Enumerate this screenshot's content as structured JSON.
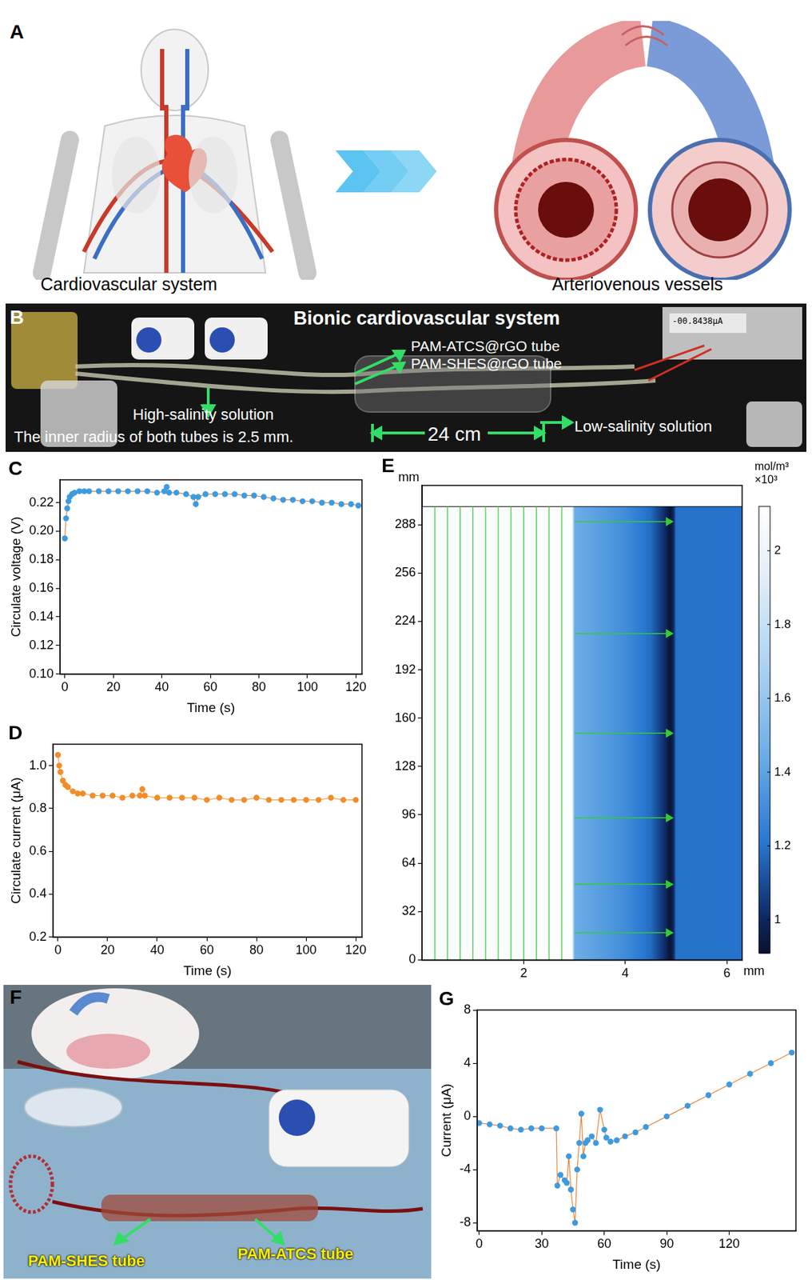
{
  "illustrations": {
    "A": {
      "letter": "A",
      "left_label": "Cardiovascular system",
      "right_label": "Arteriovenous vessels"
    },
    "B": {
      "letter": "B",
      "title": "Bionic cardiovascular system",
      "tube_labels": [
        "PAM-ATCS@rGO tube",
        "PAM-SHES@rGO tube"
      ],
      "high_label": "High-salinity solution",
      "low_label": "Low-salinity solution",
      "radius_note": "The inner radius of both tubes is 2.5 mm.",
      "length_label": "24 cm",
      "meter_reading": "-00.8438μA"
    },
    "F": {
      "letter": "F",
      "tube_labels": [
        "PAM-SHES tube",
        "PAM-ATCS tube"
      ]
    }
  },
  "chart_data": [
    {
      "panel": "C",
      "type": "line",
      "x": [
        0,
        0.5,
        1,
        1.5,
        2,
        3,
        4,
        6,
        8,
        10,
        14,
        18,
        22,
        26,
        30,
        34,
        38,
        41,
        42,
        43,
        46,
        50,
        53,
        54,
        55,
        58,
        62,
        66,
        70,
        74,
        78,
        82,
        86,
        90,
        94,
        98,
        102,
        106,
        110,
        114,
        118,
        121
      ],
      "values": [
        0.195,
        0.209,
        0.216,
        0.221,
        0.224,
        0.226,
        0.227,
        0.228,
        0.228,
        0.228,
        0.228,
        0.228,
        0.228,
        0.228,
        0.228,
        0.228,
        0.227,
        0.228,
        0.231,
        0.227,
        0.227,
        0.226,
        0.224,
        0.219,
        0.224,
        0.226,
        0.226,
        0.226,
        0.226,
        0.225,
        0.225,
        0.224,
        0.223,
        0.222,
        0.222,
        0.221,
        0.221,
        0.22,
        0.22,
        0.219,
        0.219,
        0.218
      ],
      "color": "#3d9be0",
      "marker": "circle",
      "xlim": [
        -2,
        122.5
      ],
      "ylim": [
        0.1,
        0.236
      ],
      "xticks": [
        0,
        20,
        40,
        60,
        80,
        100,
        120
      ],
      "yticks": [
        {
          "value": 0.1,
          "label": "0.10"
        },
        0.12,
        0.14,
        0.16,
        0.18,
        {
          "value": 0.2,
          "label": "0.20"
        },
        0.22
      ],
      "x_label": "Time (s)",
      "y_label": "Circulate voltage (V)",
      "grid": false
    },
    {
      "panel": "D",
      "type": "line",
      "x": [
        0,
        0.5,
        1,
        2,
        3,
        4,
        6,
        8,
        10,
        14,
        18,
        22,
        26,
        30,
        33,
        34,
        35,
        40,
        45,
        50,
        55,
        60,
        65,
        70,
        75,
        80,
        85,
        90,
        95,
        100,
        105,
        110,
        115,
        120
      ],
      "values": [
        1.05,
        1.0,
        0.97,
        0.93,
        0.91,
        0.9,
        0.88,
        0.87,
        0.87,
        0.86,
        0.86,
        0.86,
        0.85,
        0.86,
        0.86,
        0.89,
        0.86,
        0.85,
        0.85,
        0.85,
        0.85,
        0.84,
        0.85,
        0.84,
        0.84,
        0.85,
        0.84,
        0.84,
        0.84,
        0.84,
        0.84,
        0.85,
        0.84,
        0.84
      ],
      "color": "#f28c28",
      "marker": "circle",
      "xlim": [
        -2,
        122.5
      ],
      "ylim": [
        0.2,
        1.1
      ],
      "xticks": [
        0,
        20,
        40,
        60,
        80,
        100,
        120
      ],
      "yticks": [
        0.2,
        0.4,
        0.6,
        0.8,
        {
          "value": 1,
          "label": "1.0"
        }
      ],
      "x_label": "Time (s)",
      "y_label": "Circulate current (μA)",
      "grid": false
    },
    {
      "panel": "E",
      "type": "heatmap",
      "xlim": [
        0,
        6.3
      ],
      "ylim": [
        0,
        314
      ],
      "xticks": [
        2,
        4,
        6
      ],
      "yticks": [
        0,
        32,
        64,
        96,
        128,
        160,
        192,
        224,
        256,
        288
      ],
      "x_label": "mm",
      "y_label": "mm",
      "concentration": {
        "x": [
          0,
          2.95,
          3.0,
          3.5,
          4.0,
          4.5,
          4.8,
          4.88,
          4.95,
          5.0,
          6.3
        ],
        "values": [
          2.1,
          2.1,
          1.45,
          1.38,
          1.3,
          1.18,
          1.0,
          0.92,
          1.0,
          1.2,
          1.2
        ],
        "y": [
          0,
          300
        ]
      },
      "colorbar": {
        "range": [
          0.91,
          2.12
        ],
        "ticks": [
          1,
          1.2,
          1.4,
          1.6,
          1.8,
          2
        ],
        "title": [
          "mol/m³",
          "×10³"
        ]
      },
      "flow_lines": {
        "vertical_x": [
          0.25,
          0.5,
          0.75,
          1.0,
          1.25,
          1.5,
          1.75,
          2.0,
          2.25,
          2.5,
          2.75
        ],
        "vertical_y": [
          0,
          300
        ],
        "horizontal_y": [
          18,
          50,
          94,
          150,
          216,
          290
        ],
        "horizontal_x": [
          3.0,
          4.85
        ]
      },
      "color": "#33cc33",
      "grid": false
    },
    {
      "panel": "G",
      "type": "line",
      "x": [
        0,
        5,
        10,
        15,
        20,
        25,
        30,
        37,
        37.5,
        39,
        41,
        42,
        43,
        44,
        45,
        46,
        47,
        48,
        49,
        50,
        51,
        52,
        54,
        56,
        58,
        60,
        61,
        63,
        66,
        70,
        75,
        80,
        90,
        100,
        110,
        120,
        130,
        140,
        150
      ],
      "values": [
        -0.5,
        -0.6,
        -0.7,
        -0.9,
        -1.0,
        -0.9,
        -0.9,
        -0.9,
        -5.2,
        -4.4,
        -4.8,
        -5.0,
        -3.0,
        -5.5,
        -7.0,
        -8.0,
        -4.0,
        -2.0,
        0.2,
        -3.0,
        -2.0,
        -1.8,
        -1.5,
        -2.0,
        0.5,
        -1.0,
        -1.6,
        -1.9,
        -1.8,
        -1.5,
        -1.2,
        -0.8,
        0.0,
        0.8,
        1.6,
        2.4,
        3.2,
        4.0,
        4.8
      ],
      "color": "#3d9be0",
      "marker": "circle",
      "xlim": [
        -1,
        152
      ],
      "ylim": [
        -8.6,
        8
      ],
      "xticks": [
        0,
        30,
        60,
        90,
        120
      ],
      "yticks": [
        -8,
        -4,
        0,
        4,
        8
      ],
      "x_label": "Time (s)",
      "y_label": "Current (μA)",
      "grid": false
    }
  ]
}
